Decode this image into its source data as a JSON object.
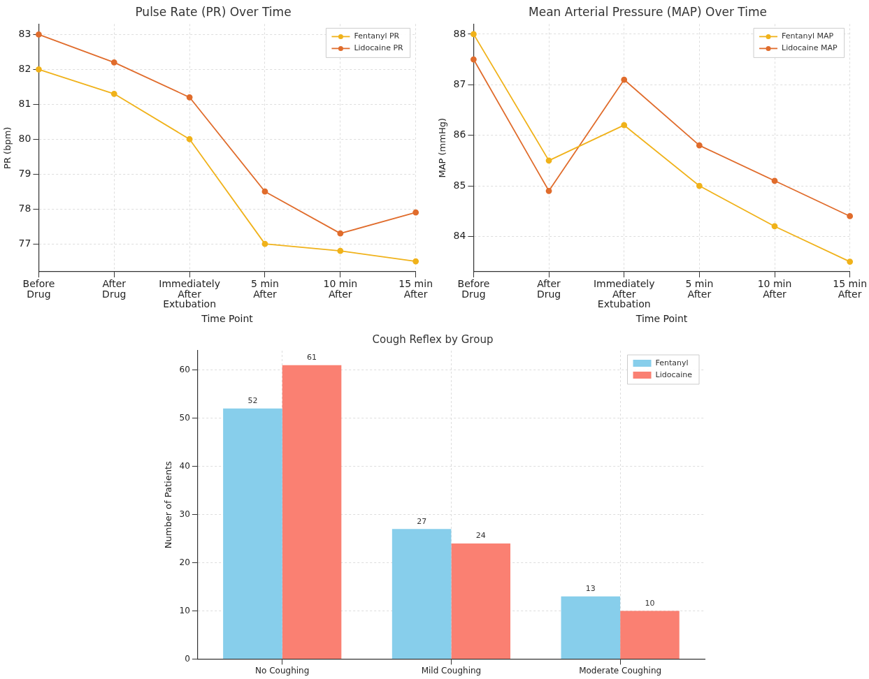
{
  "chart_data": [
    {
      "type": "line",
      "title": "Pulse Rate (PR) Over Time",
      "xlabel": "Time Point",
      "ylabel": "PR (bpm)",
      "categories": [
        "Before\nDrug",
        "After\nDrug",
        "Immediately\nAfter\nExtubation",
        "5 min\nAfter",
        "10 min\nAfter",
        "15 min\nAfter"
      ],
      "series": [
        {
          "name": "Fentanyl PR",
          "color": "#f0b21a",
          "values": [
            82,
            81.3,
            80,
            77,
            76.8,
            76.5
          ]
        },
        {
          "name": "Lidocaine PR",
          "color": "#e06c2c",
          "values": [
            83,
            82.2,
            81.2,
            78.5,
            77.3,
            77.9
          ]
        }
      ],
      "ylim": [
        76.2,
        83.3
      ],
      "yticks": [
        77,
        78,
        79,
        80,
        81,
        82,
        83
      ],
      "grid": true,
      "legend": "top right",
      "marker": "circle"
    },
    {
      "type": "line",
      "title": "Mean Arterial Pressure (MAP) Over Time",
      "xlabel": "Time Point",
      "ylabel": "MAP (mmHg)",
      "categories": [
        "Before\nDrug",
        "After\nDrug",
        "Immediately\nAfter\nExtubation",
        "5 min\nAfter",
        "10 min\nAfter",
        "15 min\nAfter"
      ],
      "series": [
        {
          "name": "Fentanyl MAP",
          "color": "#f0b21a",
          "values": [
            88,
            85.5,
            86.2,
            85,
            84.2,
            83.5
          ]
        },
        {
          "name": "Lidocaine MAP",
          "color": "#e06c2c",
          "values": [
            87.5,
            84.9,
            87.1,
            85.8,
            85.1,
            84.4
          ]
        }
      ],
      "ylim": [
        83.3,
        88.2
      ],
      "yticks": [
        84,
        85,
        86,
        87,
        88
      ],
      "grid": true,
      "legend": "top right",
      "marker": "circle"
    },
    {
      "type": "bar",
      "title": "Cough Reflex by Group",
      "ylabel": "Number of Patients",
      "categories": [
        "No Coughing",
        "Mild Coughing",
        "Moderate Coughing"
      ],
      "series": [
        {
          "name": "Fentanyl",
          "color": "#87ceeb",
          "values": [
            52,
            27,
            13
          ]
        },
        {
          "name": "Lidocaine",
          "color": "#fa8072",
          "values": [
            61,
            24,
            10
          ]
        }
      ],
      "ylim": [
        0,
        64
      ],
      "yticks": [
        0,
        10,
        20,
        30,
        40,
        50,
        60
      ],
      "grid": true,
      "legend": "top right",
      "data_labels": true
    }
  ]
}
